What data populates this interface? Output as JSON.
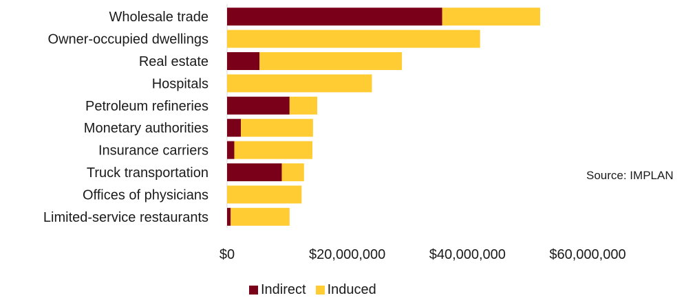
{
  "chart_data": {
    "type": "bar",
    "orientation": "horizontal",
    "stacked": true,
    "categories": [
      "Wholesale trade",
      "Owner-occupied dwellings",
      "Real estate",
      "Hospitals",
      "Petroleum refineries",
      "Monetary authorities",
      "Insurance carriers",
      "Truck transportation",
      "Offices of physicians",
      "Limited-service restaurants"
    ],
    "series": [
      {
        "name": "Indirect",
        "color": "#7a0019",
        "values": [
          35800000,
          0,
          5400000,
          0,
          10400000,
          2300000,
          1200000,
          9100000,
          0,
          600000
        ]
      },
      {
        "name": "Induced",
        "color": "#ffcc33",
        "values": [
          16300000,
          42100000,
          23700000,
          24100000,
          4600000,
          12000000,
          13000000,
          3700000,
          12400000,
          9800000
        ]
      }
    ],
    "xlim": [
      0,
      60000000
    ],
    "xticks": [
      0,
      20000000,
      40000000,
      60000000
    ],
    "xtick_labels": [
      "$0",
      "$20,000,000",
      "$40,000,000",
      "$60,000,000"
    ],
    "title": "",
    "xlabel": "",
    "ylabel": "",
    "legend_position": "bottom",
    "grid": false
  },
  "source_note": "Source: IMPLAN"
}
